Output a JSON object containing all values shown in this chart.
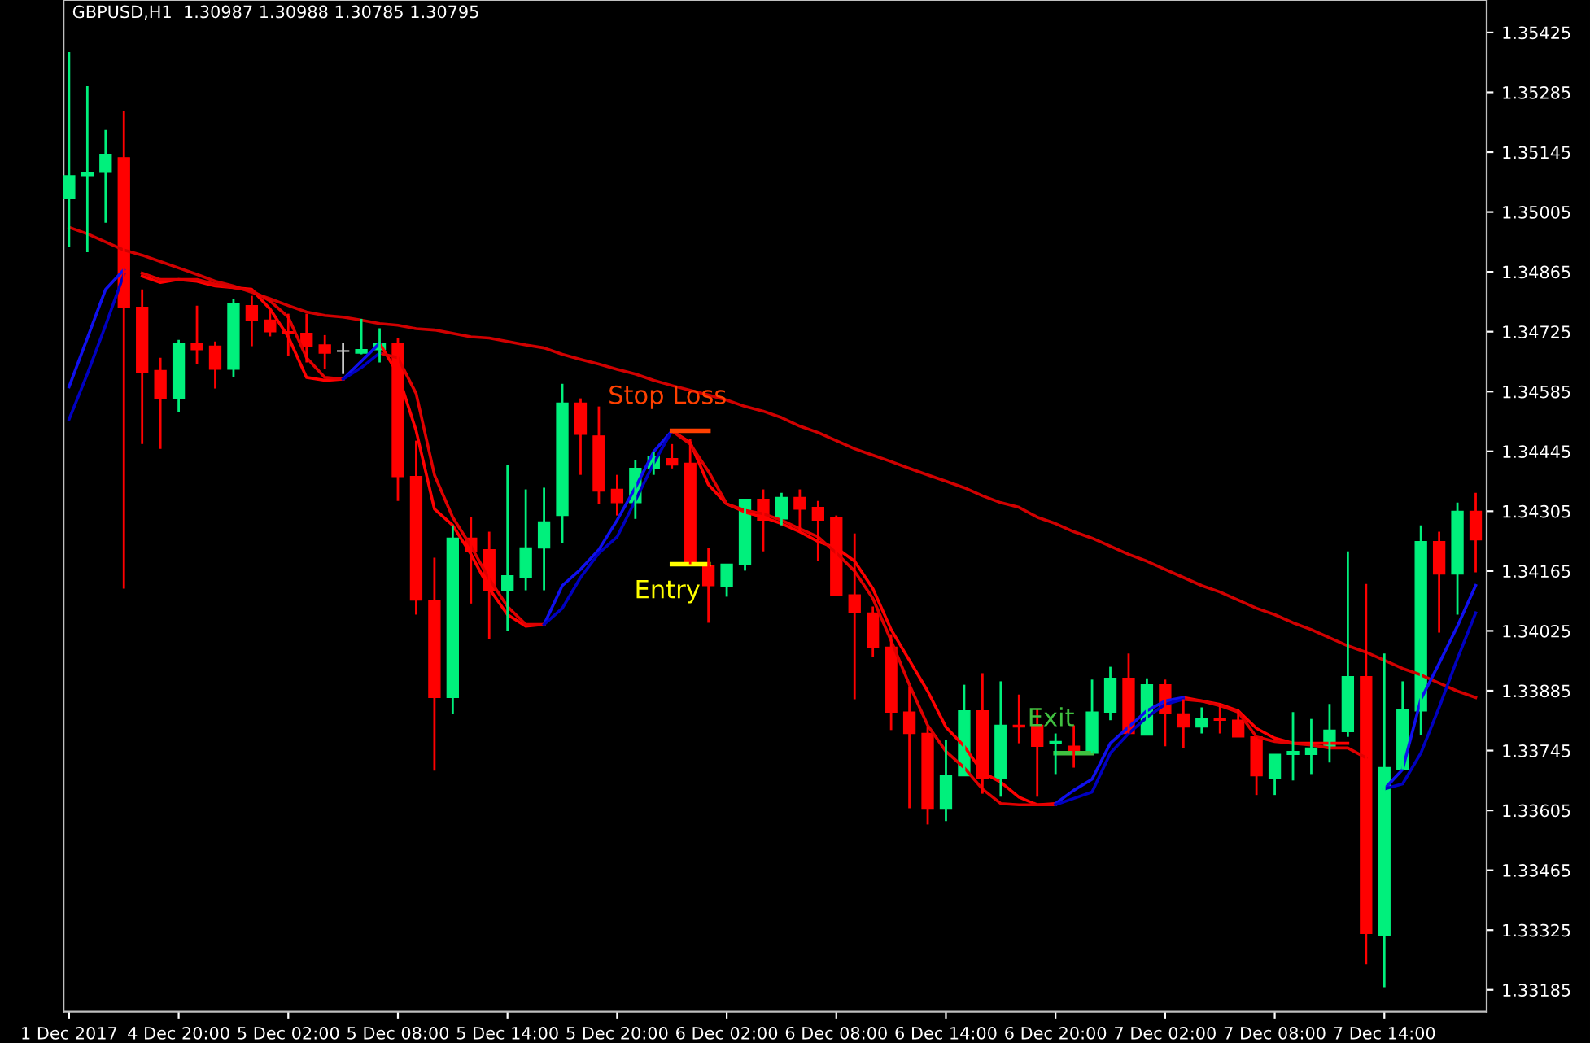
{
  "chart_data": {
    "type": "candlestick",
    "title": "GBPUSD,H1  1.30987 1.30988 1.30785 1.30795",
    "categories": [
      "1 Dec 2017",
      null,
      null,
      null,
      null,
      null,
      "4 Dec 20:00",
      null,
      null,
      null,
      null,
      null,
      "5 Dec 02:00",
      null,
      null,
      null,
      null,
      null,
      "5 Dec 08:00",
      null,
      null,
      null,
      null,
      null,
      "5 Dec 14:00",
      null,
      null,
      null,
      null,
      null,
      "5 Dec 20:00",
      null,
      null,
      null,
      null,
      null,
      "6 Dec 02:00",
      null,
      null,
      null,
      null,
      null,
      "6 Dec 08:00",
      null,
      null,
      null,
      null,
      null,
      "6 Dec 14:00",
      null,
      null,
      null,
      null,
      null,
      "6 Dec 20:00",
      null,
      null,
      null,
      null,
      null,
      "7 Dec 02:00",
      null,
      null,
      null,
      null,
      null,
      "7 Dec 08:00",
      null,
      null,
      null,
      null,
      null,
      "7 Dec 14:00",
      null,
      null,
      null,
      null,
      null
    ],
    "ohlc": [
      [
        1.35037,
        1.35379,
        1.34923,
        1.3509
      ],
      [
        1.3509,
        1.35299,
        1.34911,
        1.35098
      ],
      [
        1.35098,
        1.35197,
        1.3498,
        1.3514
      ],
      [
        1.35132,
        1.35242,
        1.34124,
        1.34782
      ],
      [
        1.34782,
        1.34824,
        1.34462,
        1.3463
      ],
      [
        1.34634,
        1.34664,
        1.34451,
        1.34569
      ],
      [
        1.34569,
        1.34706,
        1.34538,
        1.34698
      ],
      [
        1.34698,
        1.34786,
        1.34649,
        1.34683
      ],
      [
        1.34691,
        1.34702,
        1.34592,
        1.34637
      ],
      [
        1.34637,
        1.34801,
        1.34618,
        1.3479
      ],
      [
        1.34786,
        1.34809,
        1.34691,
        1.34752
      ],
      [
        1.34752,
        1.34778,
        1.34714,
        1.34725
      ],
      [
        1.34725,
        1.34767,
        1.34668,
        1.34721
      ],
      [
        1.34721,
        1.34767,
        1.34653,
        1.34691
      ],
      [
        1.34694,
        1.34717,
        1.34637,
        1.34675
      ],
      [
        1.34679,
        1.34698,
        1.34626,
        1.34679
      ],
      [
        1.34675,
        1.34755,
        1.34672,
        1.34683
      ],
      [
        1.34683,
        1.34733,
        1.34653,
        1.34698
      ],
      [
        1.34698,
        1.3471,
        1.34329,
        1.34386
      ],
      [
        1.34386,
        1.3447,
        1.34063,
        1.34097
      ],
      [
        1.34097,
        1.34196,
        1.33698,
        1.33869
      ],
      [
        1.33869,
        1.34272,
        1.33831,
        1.34242
      ],
      [
        1.34242,
        1.34291,
        1.34089,
        1.34211
      ],
      [
        1.34215,
        1.34257,
        1.34006,
        1.3412
      ],
      [
        1.3412,
        1.34413,
        1.34025,
        1.34154
      ],
      [
        1.3415,
        1.34356,
        1.3412,
        1.34219
      ],
      [
        1.34219,
        1.3436,
        1.3412,
        1.3428
      ],
      [
        1.34295,
        1.34603,
        1.3423,
        1.34558
      ],
      [
        1.34558,
        1.34569,
        1.3439,
        1.34485
      ],
      [
        1.34481,
        1.3455,
        1.34322,
        1.34352
      ],
      [
        1.34356,
        1.3439,
        1.34295,
        1.34325
      ],
      [
        1.34325,
        1.34424,
        1.34287,
        1.34405
      ],
      [
        1.34405,
        1.34443,
        1.3439,
        1.34432
      ],
      [
        1.34428,
        1.34462,
        1.34405,
        1.34413
      ],
      [
        1.34417,
        1.34474,
        1.34181,
        1.34181
      ],
      [
        1.34177,
        1.34219,
        1.34044,
        1.34131
      ],
      [
        1.34128,
        1.34181,
        1.34105,
        1.34181
      ],
      [
        1.34181,
        1.34333,
        1.34166,
        1.34333
      ],
      [
        1.34333,
        1.34356,
        1.34211,
        1.34284
      ],
      [
        1.34287,
        1.34348,
        1.34272,
        1.34337
      ],
      [
        1.34337,
        1.34356,
        1.34257,
        1.3431
      ],
      [
        1.34314,
        1.34329,
        1.34188,
        1.34284
      ],
      [
        1.34291,
        1.34295,
        1.34109,
        1.34109
      ],
      [
        1.34109,
        1.34253,
        1.33865,
        1.34067
      ],
      [
        1.34067,
        1.34082,
        1.33964,
        1.33987
      ],
      [
        1.33987,
        1.34017,
        1.33793,
        1.33835
      ],
      [
        1.33835,
        1.33895,
        1.3361,
        1.33785
      ],
      [
        1.33785,
        1.338,
        1.33572,
        1.3361
      ],
      [
        1.3361,
        1.3377,
        1.3358,
        1.33686
      ],
      [
        1.33686,
        1.33899,
        1.33686,
        1.33838
      ],
      [
        1.33838,
        1.33926,
        1.33644,
        1.33679
      ],
      [
        1.33679,
        1.33907,
        1.33637,
        1.33804
      ],
      [
        1.33804,
        1.33876,
        1.33762,
        1.338
      ],
      [
        1.33804,
        1.33842,
        1.33637,
        1.33755
      ],
      [
        1.33762,
        1.33785,
        1.3369,
        1.33766
      ],
      [
        1.33755,
        1.33804,
        1.33705,
        1.33736
      ],
      [
        1.33739,
        1.33911,
        1.33739,
        1.33835
      ],
      [
        1.33835,
        1.33941,
        1.33816,
        1.33914
      ],
      [
        1.33914,
        1.33972,
        1.33785,
        1.33785
      ],
      [
        1.33781,
        1.33914,
        1.33781,
        1.33899
      ],
      [
        1.33899,
        1.33911,
        1.33755,
        1.33831
      ],
      [
        1.33831,
        1.33865,
        1.33751,
        1.338
      ],
      [
        1.338,
        1.33846,
        1.33785,
        1.33819
      ],
      [
        1.33819,
        1.33854,
        1.33785,
        1.33816
      ],
      [
        1.33816,
        1.33842,
        1.33777,
        1.33777
      ],
      [
        1.33777,
        1.33777,
        1.33641,
        1.33686
      ],
      [
        1.33679,
        1.33736,
        1.33641,
        1.33736
      ],
      [
        1.33736,
        1.33835,
        1.33675,
        1.33743
      ],
      [
        1.33736,
        1.33819,
        1.3369,
        1.33751
      ],
      [
        1.33751,
        1.33854,
        1.33717,
        1.33793
      ],
      [
        1.33789,
        1.34211,
        1.33777,
        1.33918
      ],
      [
        1.33918,
        1.34135,
        1.33245,
        1.33317
      ],
      [
        1.33313,
        1.33972,
        1.33191,
        1.33705
      ],
      [
        1.33701,
        1.33907,
        1.33701,
        1.33842
      ],
      [
        1.33838,
        1.34272,
        1.33781,
        1.34234
      ],
      [
        1.34234,
        1.34257,
        1.34021,
        1.34158
      ],
      [
        1.34158,
        1.34325,
        1.34063,
        1.34305
      ],
      [
        1.34305,
        1.34348,
        1.34162,
        1.34238
      ]
    ],
    "colors": [
      "#00f07c",
      "#00f07c",
      "#00f07c",
      "#ff0000",
      "#ff0000",
      "#ff0000",
      "#00f07c",
      "#ff0000",
      "#ff0000",
      "#00f07c",
      "#ff0000",
      "#ff0000",
      "#ff0000",
      "#ff0000",
      "#ff0000",
      "#c8c8c8",
      "#00f07c",
      "#00f07c",
      "#ff0000",
      "#ff0000",
      "#ff0000",
      "#00f07c",
      "#ff0000",
      "#ff0000",
      "#00f07c",
      "#00f07c",
      "#00f07c",
      "#00f07c",
      "#ff0000",
      "#ff0000",
      "#ff0000",
      "#00f07c",
      "#00f07c",
      "#ff0000",
      "#ff0000",
      "#ff0000",
      "#00f07c",
      "#00f07c",
      "#ff0000",
      "#00f07c",
      "#ff0000",
      "#ff0000",
      "#ff0000",
      "#ff0000",
      "#ff0000",
      "#ff0000",
      "#ff0000",
      "#ff0000",
      "#00f07c",
      "#00f07c",
      "#ff0000",
      "#00f07c",
      "#ff0000",
      "#ff0000",
      "#00f07c",
      "#ff0000",
      "#00f07c",
      "#00f07c",
      "#ff0000",
      "#00f07c",
      "#ff0000",
      "#ff0000",
      "#00f07c",
      "#ff0000",
      "#ff0000",
      "#ff0000",
      "#00f07c",
      "#00f07c",
      "#00f07c",
      "#00f07c",
      "#00f07c",
      "#ff0000",
      "#00f07c",
      "#00f07c",
      "#00f07c",
      "#ff0000",
      "#00f07c",
      "#ff0000"
    ],
    "series": [
      {
        "type": "line",
        "color": "#d00000",
        "values": [
          1.34969,
          1.34954,
          1.34935,
          1.34916,
          1.34904,
          1.34889,
          1.34874,
          1.34859,
          1.34843,
          1.34832,
          1.34817,
          1.34802,
          1.34786,
          1.34771,
          1.34763,
          1.34759,
          1.34752,
          1.34744,
          1.3474,
          1.34732,
          1.34729,
          1.34721,
          1.34713,
          1.3471,
          1.34702,
          1.34694,
          1.34687,
          1.34672,
          1.3466,
          1.34649,
          1.34637,
          1.34626,
          1.34611,
          1.34599,
          1.34588,
          1.34577,
          1.34565,
          1.3455,
          1.34539,
          1.34524,
          1.34504,
          1.34489,
          1.3447,
          1.34451,
          1.34436,
          1.34421,
          1.34405,
          1.3439,
          1.34375,
          1.3436,
          1.34341,
          1.34325,
          1.34314,
          1.34291,
          1.34276,
          1.34257,
          1.34242,
          1.34223,
          1.34204,
          1.34188,
          1.34169,
          1.3415,
          1.34131,
          1.34116,
          1.34097,
          1.34078,
          1.34063,
          1.34044,
          1.34028,
          1.34009,
          1.3399,
          1.33975,
          1.33956,
          1.33937,
          1.33922,
          1.33903,
          1.33884,
          1.33869
        ]
      },
      {
        "type": "line",
        "color": "#ff0000",
        "values": [
          null,
          null,
          null,
          null,
          1.34855,
          1.3484,
          1.34847,
          1.34843,
          1.34832,
          1.34828,
          1.34824,
          1.34778,
          1.34713,
          1.34618,
          1.34611,
          1.34614,
          null,
          1.34698,
          1.34626,
          1.34493,
          1.3431,
          1.34272,
          1.34204,
          1.34124,
          1.34063,
          1.34036,
          1.3404,
          null,
          null,
          null,
          null,
          null,
          null,
          1.34493,
          1.34466,
          1.34367,
          1.34322,
          1.34303,
          1.34291,
          1.34276,
          1.34257,
          1.34234,
          1.34219,
          1.34188,
          1.34124,
          1.34028,
          1.33956,
          1.33884,
          1.338,
          1.33755,
          1.33694,
          1.33671,
          1.33636,
          1.33618,
          1.33621,
          null,
          null,
          null,
          null,
          null,
          null,
          1.33869,
          1.33861,
          1.33853,
          1.33838,
          1.33797,
          1.33774,
          1.33762,
          1.33762,
          1.33762,
          1.33762,
          null,
          null,
          null,
          null,
          null,
          null,
          null
        ]
      },
      {
        "type": "line",
        "color": "#1010ee",
        "values": [
          1.34596,
          1.3471,
          1.34824,
          1.3487,
          null,
          null,
          null,
          null,
          null,
          null,
          null,
          null,
          null,
          null,
          null,
          1.34614,
          1.34656,
          1.34698,
          null,
          null,
          null,
          null,
          null,
          null,
          null,
          null,
          1.3404,
          1.34131,
          1.34169,
          1.34215,
          1.34284,
          1.3436,
          1.34444,
          1.34493,
          null,
          null,
          null,
          null,
          null,
          null,
          null,
          null,
          null,
          null,
          null,
          null,
          null,
          null,
          null,
          null,
          null,
          null,
          null,
          null,
          1.33621,
          1.33652,
          1.33678,
          1.33762,
          1.338,
          1.33838,
          1.33861,
          1.33869,
          null,
          null,
          null,
          null,
          null,
          null,
          null,
          null,
          null,
          null,
          1.33655,
          1.33701,
          1.33865,
          1.33949,
          1.34036,
          1.34131
        ]
      },
      {
        "type": "line",
        "color": "#e00000",
        "values": [
          null,
          null,
          null,
          null,
          1.34862,
          1.34847,
          1.34847,
          1.34847,
          1.34836,
          1.34828,
          1.34821,
          1.34797,
          1.34759,
          1.34664,
          1.34618,
          1.34614,
          null,
          1.34675,
          1.34664,
          1.3458,
          1.3439,
          1.34291,
          1.34223,
          1.34146,
          1.34082,
          1.3404,
          1.3404,
          null,
          null,
          null,
          null,
          null,
          null,
          1.34493,
          1.34462,
          1.34398,
          1.34322,
          1.34307,
          1.34299,
          1.34284,
          1.34264,
          1.34245,
          1.34207,
          1.34165,
          1.34101,
          1.34002,
          1.33899,
          1.33804,
          1.33743,
          1.33705,
          1.33655,
          1.33621,
          1.33618,
          1.33618,
          1.33618,
          null,
          null,
          null,
          null,
          null,
          null,
          1.33865,
          1.33861,
          1.3385,
          1.33835,
          1.33777,
          1.33766,
          1.33762,
          1.33758,
          1.33751,
          1.33751,
          1.33728,
          null,
          null,
          null,
          null,
          null,
          null
        ]
      },
      {
        "type": "line",
        "color": "#0000c0",
        "values": [
          1.3452,
          1.34626,
          1.3474,
          1.34859,
          null,
          null,
          null,
          null,
          null,
          null,
          null,
          null,
          null,
          null,
          null,
          1.34614,
          1.34641,
          1.34675,
          null,
          null,
          null,
          null,
          null,
          null,
          null,
          null,
          1.3404,
          1.34078,
          1.3415,
          1.34207,
          1.34245,
          1.3433,
          1.34417,
          1.34493,
          null,
          null,
          null,
          null,
          null,
          null,
          null,
          null,
          null,
          null,
          null,
          null,
          null,
          null,
          null,
          null,
          null,
          null,
          null,
          null,
          1.33618,
          1.33633,
          1.33648,
          1.33739,
          1.33785,
          1.33823,
          1.33853,
          1.33865,
          null,
          null,
          null,
          null,
          null,
          null,
          null,
          null,
          null,
          null,
          1.33655,
          1.33667,
          1.33739,
          1.33846,
          1.3396,
          1.34067
        ]
      },
      {
        "type": "line",
        "color": "#ff4000",
        "values": [
          null,
          null,
          null,
          null,
          null,
          null,
          null,
          null,
          null,
          null,
          null,
          null,
          null,
          null,
          null,
          null,
          null,
          null,
          null,
          null,
          null,
          null,
          null,
          null,
          null,
          null,
          null,
          null,
          null,
          null,
          null,
          null,
          null,
          1.34493,
          1.34493,
          1.34493,
          null,
          null,
          null,
          null,
          null,
          null,
          null,
          null,
          null,
          null,
          null,
          null,
          null,
          null,
          null,
          null,
          null,
          null,
          null,
          null,
          null,
          null,
          null,
          null,
          null,
          null,
          null,
          null,
          null,
          null,
          null,
          null,
          null,
          null,
          null,
          null,
          null,
          null,
          null,
          null,
          null,
          null
        ]
      },
      {
        "type": "line",
        "color": "#ffff00",
        "values": [
          null,
          null,
          null,
          null,
          null,
          null,
          null,
          null,
          null,
          null,
          null,
          null,
          null,
          null,
          null,
          null,
          null,
          null,
          null,
          null,
          null,
          null,
          null,
          null,
          null,
          null,
          null,
          null,
          null,
          null,
          null,
          null,
          null,
          1.34181,
          1.34181,
          1.34181,
          null,
          null,
          null,
          null,
          null,
          null,
          null,
          null,
          null,
          null,
          null,
          null,
          null,
          null,
          null,
          null,
          null,
          null,
          null,
          null,
          null,
          null,
          null,
          null,
          null,
          null,
          null,
          null,
          null,
          null,
          null,
          null,
          null,
          null,
          null,
          null,
          null,
          null,
          null,
          null,
          null,
          null
        ]
      },
      {
        "type": "line",
        "color": "#40c040",
        "values": [
          null,
          null,
          null,
          null,
          null,
          null,
          null,
          null,
          null,
          null,
          null,
          null,
          null,
          null,
          null,
          null,
          null,
          null,
          null,
          null,
          null,
          null,
          null,
          null,
          null,
          null,
          null,
          null,
          null,
          null,
          null,
          null,
          null,
          null,
          null,
          null,
          null,
          null,
          null,
          null,
          null,
          null,
          null,
          null,
          null,
          null,
          null,
          null,
          null,
          null,
          null,
          null,
          null,
          null,
          1.33739,
          1.33739,
          1.33739,
          null,
          null,
          null,
          null,
          null,
          null,
          null,
          null,
          null,
          null,
          null,
          null,
          null,
          null,
          null,
          null,
          null,
          null,
          null,
          null,
          null
        ]
      }
    ],
    "annotations": [
      {
        "text": "Stop Loss",
        "y": 1.34493
      },
      {
        "text": "Entry",
        "y": 1.34181
      },
      {
        "text": "Exit",
        "y": 1.33739
      }
    ],
    "ylim": [
      1.33134,
      1.35501
    ],
    "yticks": [
      1.33185,
      1.33325,
      1.33465,
      1.33605,
      1.33745,
      1.33885,
      1.34025,
      1.34165,
      1.34305,
      1.34445,
      1.34585,
      1.34725,
      1.34865,
      1.35005,
      1.35145,
      1.35285,
      1.35425
    ],
    "grid": false,
    "legend": false
  }
}
